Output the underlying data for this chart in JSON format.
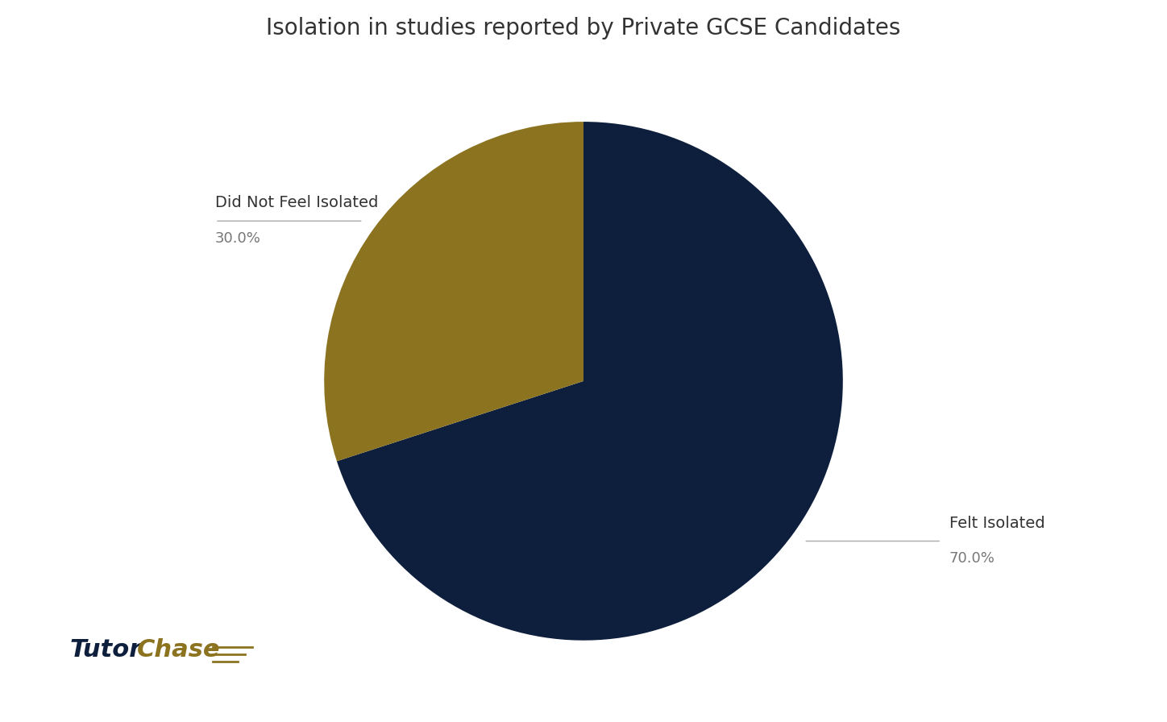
{
  "title": "Isolation in studies reported by Private GCSE Candidates",
  "slices": [
    {
      "label": "Felt Isolated",
      "value": 70.0,
      "color": "#0d1f3c"
    },
    {
      "label": "Did Not Feel Isolated",
      "value": 30.0,
      "color": "#8B7320"
    }
  ],
  "background_color": "#ffffff",
  "title_fontsize": 20,
  "label_fontsize": 14,
  "pct_fontsize": 13,
  "label_color": "#333333",
  "pct_color": "#777777",
  "line_color": "#aaaaaa",
  "tutor_color": "#0d1f3c",
  "chase_color": "#8B7320",
  "startangle": 90
}
